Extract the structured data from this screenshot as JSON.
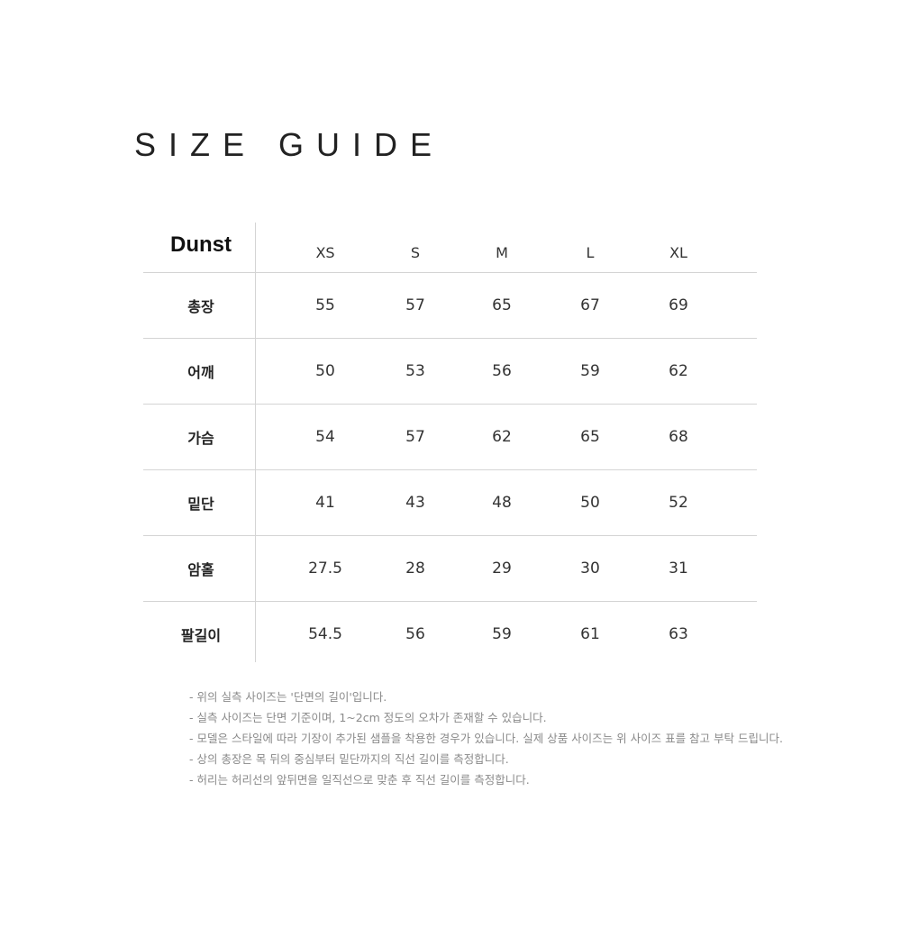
{
  "title": "SIZE GUIDE",
  "table": {
    "brand": "Dunst",
    "sizes": [
      "XS",
      "S",
      "M",
      "L",
      "XL"
    ],
    "rows": [
      {
        "label": "총장",
        "values": [
          "55",
          "57",
          "65",
          "67",
          "69"
        ]
      },
      {
        "label": "어깨",
        "values": [
          "50",
          "53",
          "56",
          "59",
          "62"
        ]
      },
      {
        "label": "가슴",
        "values": [
          "54",
          "57",
          "62",
          "65",
          "68"
        ]
      },
      {
        "label": "밑단",
        "values": [
          "41",
          "43",
          "48",
          "50",
          "52"
        ]
      },
      {
        "label": "암홀",
        "values": [
          "27.5",
          "28",
          "29",
          "30",
          "31"
        ]
      },
      {
        "label": "팔길이",
        "values": [
          "54.5",
          "56",
          "59",
          "61",
          "63"
        ]
      }
    ]
  },
  "notes": [
    "- 위의 실측 사이즈는 '단면의 길이'입니다.",
    "- 실측 사이즈는 단면 기준이며,  1~2cm 정도의 오차가 존재할 수 있습니다.",
    "- 모델은 스타일에 따라 기장이 추가된 샘플을 착용한 경우가 있습니다. 실제 상품 사이즈는 위 사이즈 표를 참고 부탁 드립니다.",
    "- 상의 총장은 목 뒤의 중심부터 밑단까지의 직선 길이를 측정합니다.",
    "- 허리는 허리선의 앞뒤면을 일직선으로 맞춘 후 직선 길이를 측정합니다."
  ]
}
